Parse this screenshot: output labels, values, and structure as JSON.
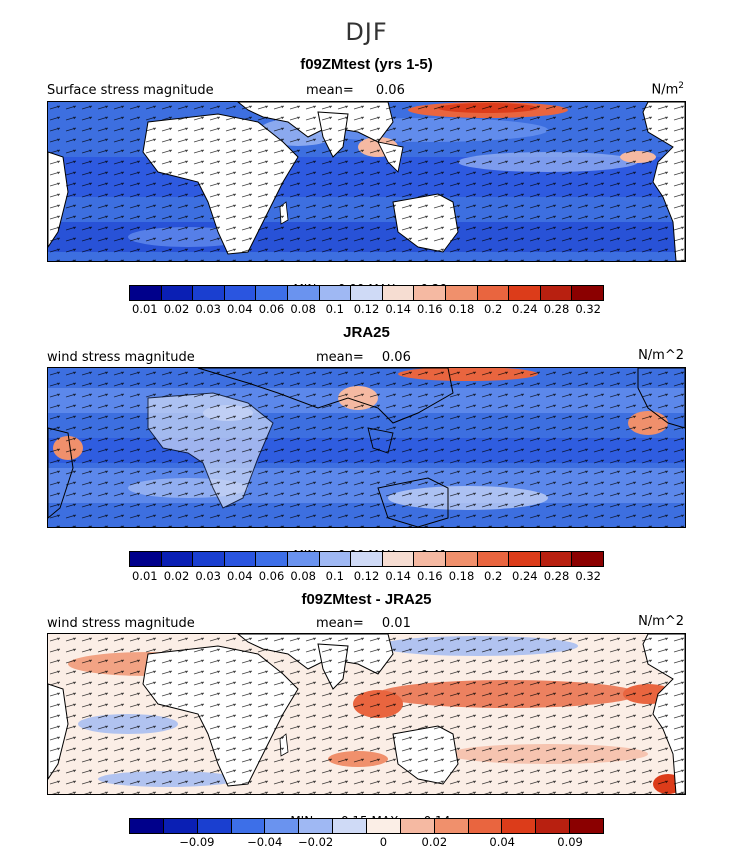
{
  "season": "DJF",
  "panels": [
    {
      "title": "f09ZMtest (yrs 1-5)",
      "variable_label": "Surface stress magnitude",
      "mean_label": "mean=",
      "mean_value": "0.06",
      "units_label": "N/m",
      "units_sup": "2",
      "min_label": "MIN =",
      "min_value": "0.00",
      "max_label": "MAX =",
      "max_value": "0.29",
      "colorbar_ticks": [
        "0.01",
        "0.02",
        "0.03",
        "0.04",
        "0.06",
        "0.08",
        "0.1",
        "0.12",
        "0.14",
        "0.16",
        "0.18",
        "0.2",
        "0.24",
        "0.28",
        "0.32"
      ]
    },
    {
      "title": "JRA25",
      "variable_label": "wind stress magnitude",
      "mean_label": "mean=",
      "mean_value": "0.06",
      "units_label": "N/m^2",
      "min_label": "MIN =",
      "min_value": "0.00",
      "max_label": "MAX =",
      "max_value": "0.41",
      "colorbar_ticks": [
        "0.01",
        "0.02",
        "0.03",
        "0.04",
        "0.06",
        "0.08",
        "0.1",
        "0.12",
        "0.14",
        "0.16",
        "0.18",
        "0.2",
        "0.24",
        "0.28",
        "0.32"
      ]
    },
    {
      "title": "f09ZMtest - JRA25",
      "variable_label": "wind stress magnitude",
      "mean_label": "mean=",
      "mean_value": "0.01",
      "units_label": "N/m^2",
      "min_label": "MIN =",
      "min_value": "−0.15",
      "max_label": "MAX =",
      "max_value": "0.14",
      "colorbar_ticks": [
        "−0.09",
        "−0.04",
        "−0.02",
        "0",
        "0.02",
        "0.04",
        "0.09"
      ]
    }
  ],
  "colors": {
    "abs_scale": [
      "#00008b",
      "#0a1fb4",
      "#1a3fd0",
      "#2a55e0",
      "#3d6fe8",
      "#6a93ef",
      "#9fb8f3",
      "#cfdaf6",
      "#f6ddd2",
      "#f5b9a2",
      "#f0906c",
      "#e9653f",
      "#dc3c1a",
      "#b82010",
      "#8b0000"
    ],
    "diff_scale": [
      "#00008b",
      "#0a1fb4",
      "#1a3fd0",
      "#3d6fe8",
      "#6a93ef",
      "#9fb8f3",
      "#cfdaf6",
      "#fbeee6",
      "#f5b9a2",
      "#f0906c",
      "#e9653f",
      "#dc3c1a",
      "#b82010",
      "#8b0000"
    ],
    "land": "#ffffff",
    "ocean_base": "#3d6fe0"
  }
}
